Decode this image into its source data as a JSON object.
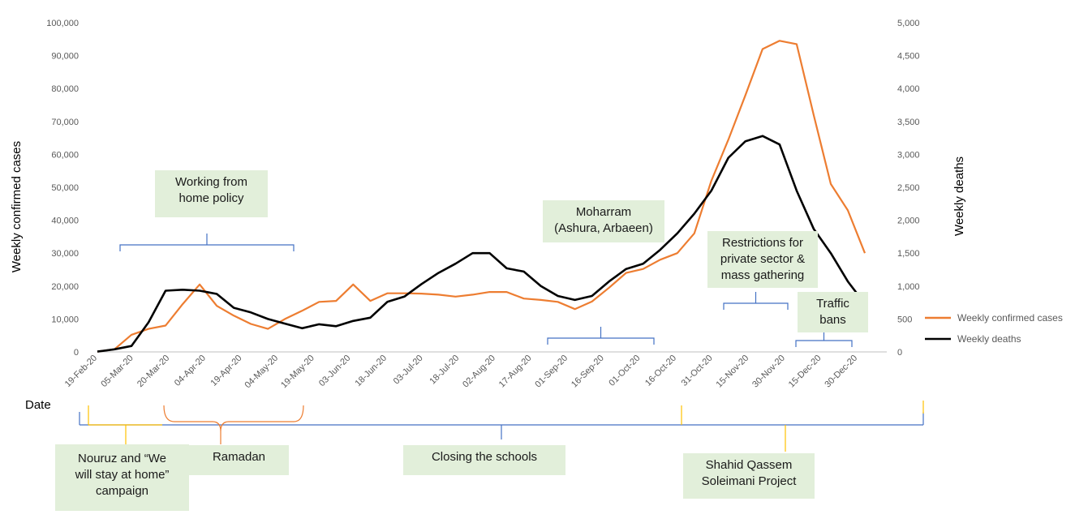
{
  "chart_data": {
    "type": "line",
    "x": [
      "19-Feb-20",
      "26-Feb-20",
      "04-Mar-20",
      "11-Mar-20",
      "18-Mar-20",
      "25-Mar-20",
      "01-Apr-20",
      "08-Apr-20",
      "15-Apr-20",
      "22-Apr-20",
      "29-Apr-20",
      "06-May-20",
      "13-May-20",
      "20-May-20",
      "27-May-20",
      "03-Jun-20",
      "10-Jun-20",
      "17-Jun-20",
      "24-Jun-20",
      "01-Jul-20",
      "08-Jul-20",
      "15-Jul-20",
      "22-Jul-20",
      "29-Jul-20",
      "05-Aug-20",
      "12-Aug-20",
      "19-Aug-20",
      "26-Aug-20",
      "02-Sep-20",
      "09-Sep-20",
      "16-Sep-20",
      "23-Sep-20",
      "30-Sep-20",
      "07-Oct-20",
      "14-Oct-20",
      "21-Oct-20",
      "28-Oct-20",
      "04-Nov-20",
      "11-Nov-20",
      "18-Nov-20",
      "25-Nov-20",
      "02-Dec-20",
      "09-Dec-20",
      "16-Dec-20",
      "23-Dec-20",
      "30-Dec-20"
    ],
    "x_tick_labels": [
      "19-Feb-20",
      "05-Mar-20",
      "20-Mar-20",
      "04-Apr-20",
      "19-Apr-20",
      "04-May-20",
      "19-May-20",
      "03-Jun-20",
      "18-Jun-20",
      "03-Jul-20",
      "18-Jul-20",
      "02-Aug-20",
      "17-Aug-20",
      "01-Sep-20",
      "16-Sep-20",
      "01-Oct-20",
      "16-Oct-20",
      "31-Oct-20",
      "15-Nov-20",
      "30-Nov-20",
      "15-Dec-20",
      "30-Dec-20"
    ],
    "series": [
      {
        "name": "Weekly confirmed cases",
        "axis": "left",
        "color": "#ed7d31",
        "values": [
          100,
          800,
          5200,
          7000,
          8000,
          14500,
          20500,
          14000,
          11000,
          8500,
          7000,
          10000,
          12500,
          15200,
          15500,
          20500,
          15500,
          17800,
          17800,
          17700,
          17400,
          16800,
          17400,
          18200,
          18200,
          16200,
          15800,
          15200,
          13000,
          15300,
          19500,
          24000,
          25200,
          28000,
          30000,
          36000,
          52000,
          64500,
          78000,
          92000,
          94500,
          93500,
          72000,
          51000,
          43000,
          30000
        ]
      },
      {
        "name": "Weekly deaths",
        "axis": "right",
        "color": "#000000",
        "values": [
          5,
          40,
          90,
          450,
          930,
          945,
          930,
          880,
          670,
          600,
          500,
          430,
          360,
          420,
          390,
          470,
          520,
          760,
          840,
          1030,
          1200,
          1340,
          1500,
          1500,
          1270,
          1220,
          1000,
          850,
          790,
          850,
          1070,
          1260,
          1340,
          1550,
          1800,
          2100,
          2450,
          2950,
          3200,
          3280,
          3150,
          2450,
          1870,
          1500,
          1070,
          730
        ]
      }
    ],
    "ylabel": "Weekly confirmed cases",
    "y2label": "Weekly deaths",
    "xlabel": "Date",
    "ylim": [
      0,
      100000
    ],
    "y2lim": [
      0,
      5000
    ],
    "y_ticks": [
      "0",
      "10,000",
      "20,000",
      "30,000",
      "40,000",
      "50,000",
      "60,000",
      "70,000",
      "80,000",
      "90,000",
      "100,000"
    ],
    "y2_ticks": [
      "0",
      "500",
      "1,000",
      "1,500",
      "2,000",
      "2,500",
      "3,000",
      "3,500",
      "4,000",
      "4,500",
      "5,000"
    ],
    "legend_placement": "right",
    "grid": false
  },
  "annotations": {
    "working_home": [
      "Working from",
      "home policy"
    ],
    "moharram": [
      "Moharram",
      "(Ashura, Arbaeen)"
    ],
    "restrictions": [
      "Restrictions for",
      "private sector &",
      "mass gathering"
    ],
    "traffic": [
      "Traffic",
      "bans"
    ],
    "nouruz": [
      "Nouruz and “We",
      "will stay at home”",
      "campaign"
    ],
    "ramadan": "Ramadan",
    "schools": "Closing the schools",
    "shahid": [
      "Shahid Qassem",
      "Soleimani Project"
    ]
  }
}
